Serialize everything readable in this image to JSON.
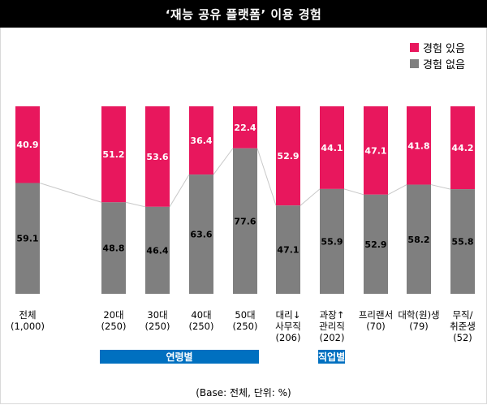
{
  "title": "‘재능 공유 플랫폼’ 이용 경험",
  "base_note": "(Base: 전체, 단위: %)",
  "colors": {
    "experienced": "#e8175d",
    "not_experienced": "#7f7f7f",
    "group_bar": "#0070c0"
  },
  "groups": [
    {
      "label": "연령별",
      "from": 1,
      "to": 4
    },
    {
      "label": "직업별",
      "from": 6,
      "to": 10
    }
  ],
  "chart_data": {
    "type": "bar",
    "stacked": true,
    "ylim": [
      0,
      100
    ],
    "grid": false,
    "legend": "top-right",
    "categories": [
      "전체\n(1,000)",
      "20대\n(250)",
      "30대\n(250)",
      "40대\n(250)",
      "50대\n(250)",
      "대리↓\n사무직\n(206)",
      "과장↑\n관리직\n(202)",
      "프리랜서\n(70)",
      "대학(원)생\n(79)",
      "무직/\n취준생\n(52)"
    ],
    "series": [
      {
        "name": "경험 있음",
        "values": [
          40.9,
          51.2,
          53.6,
          36.4,
          22.4,
          52.9,
          44.1,
          47.1,
          41.8,
          44.2
        ]
      },
      {
        "name": "경험 없음",
        "values": [
          59.1,
          48.8,
          46.4,
          63.6,
          77.6,
          47.1,
          55.9,
          52.9,
          58.2,
          55.8
        ]
      }
    ]
  }
}
